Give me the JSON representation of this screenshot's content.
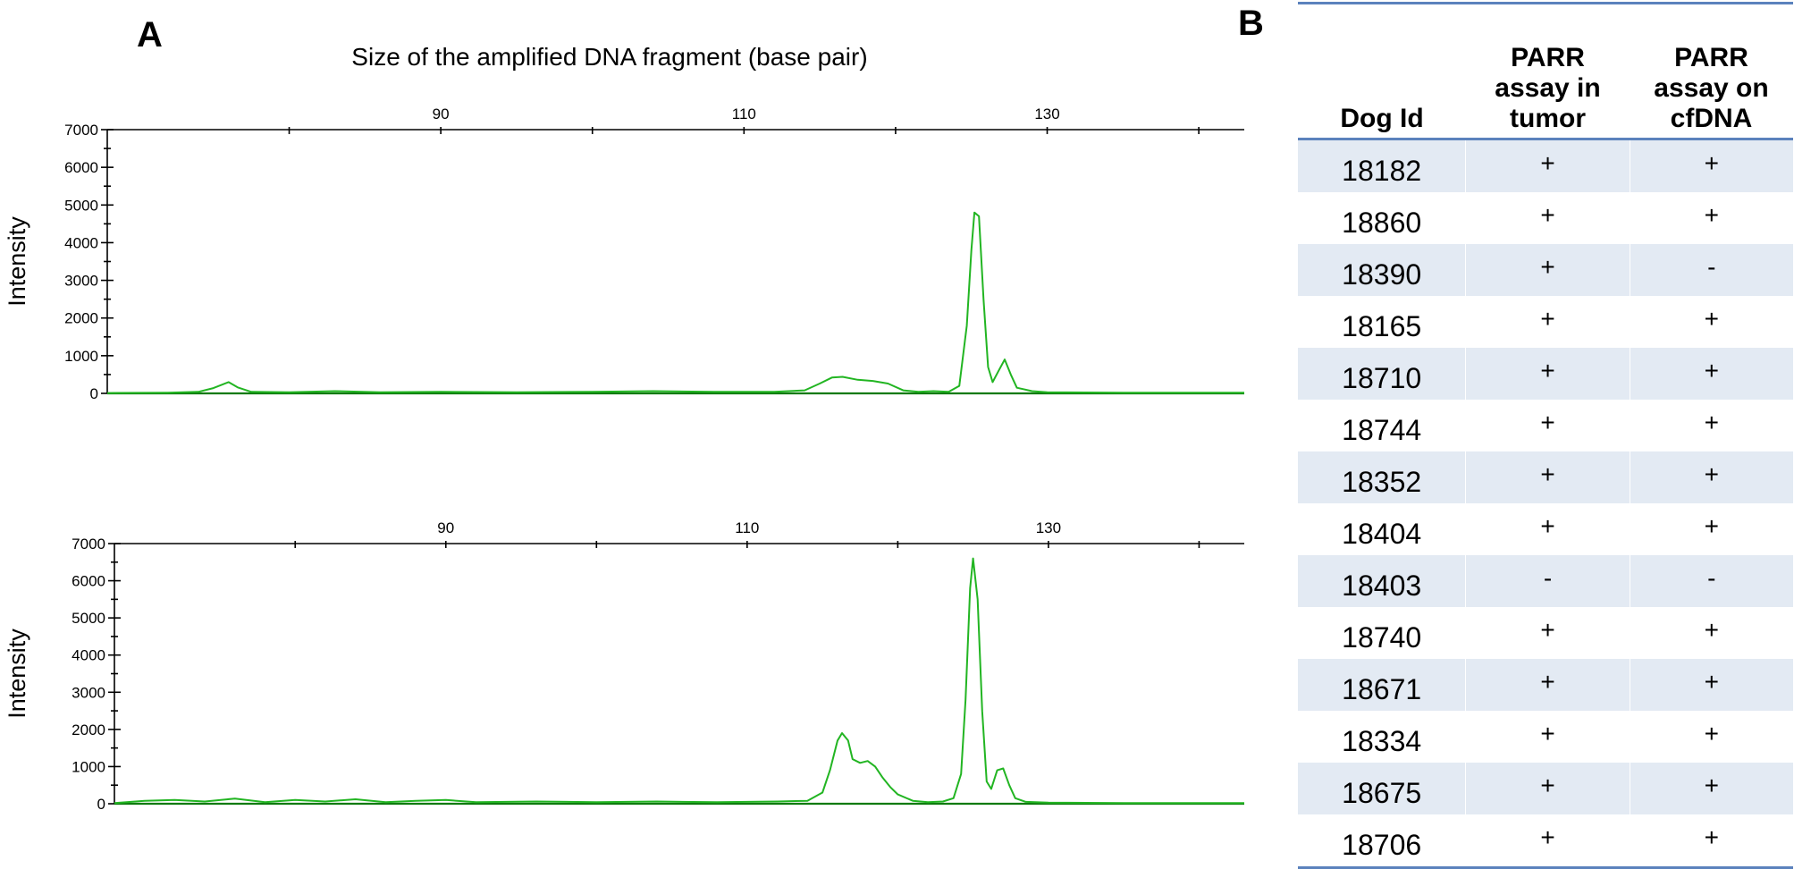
{
  "panel_a": {
    "letter": "A",
    "title": "Size of the amplified DNA fragment (base pair)"
  },
  "chart_data": [
    {
      "type": "line",
      "title": "Size of the amplified DNA fragment (base pair)",
      "xlabel": "",
      "ylabel": "Intensity",
      "xlim": [
        68,
        143
      ],
      "ylim": [
        0,
        7000
      ],
      "x_ticks_labeled": [
        90,
        110,
        130
      ],
      "x_ticks_all": [
        80,
        90,
        100,
        110,
        120,
        130,
        140
      ],
      "y_ticks_labeled": [
        0,
        1000,
        2000,
        3000,
        4000,
        5000,
        6000,
        7000
      ],
      "grid": false,
      "series": [
        {
          "color": "#22b522",
          "points": [
            [
              68,
              10
            ],
            [
              72,
              20
            ],
            [
              74,
              40
            ],
            [
              75,
              140
            ],
            [
              76,
              300
            ],
            [
              76.6,
              160
            ],
            [
              77.5,
              40
            ],
            [
              80,
              30
            ],
            [
              83,
              60
            ],
            [
              86,
              30
            ],
            [
              90,
              40
            ],
            [
              95,
              30
            ],
            [
              100,
              40
            ],
            [
              104,
              60
            ],
            [
              108,
              40
            ],
            [
              112,
              40
            ],
            [
              114,
              80
            ],
            [
              115,
              260
            ],
            [
              115.8,
              420
            ],
            [
              116.5,
              440
            ],
            [
              117.5,
              360
            ],
            [
              118.5,
              330
            ],
            [
              119.5,
              260
            ],
            [
              120.5,
              80
            ],
            [
              121.5,
              40
            ],
            [
              122.5,
              60
            ],
            [
              123.5,
              40
            ],
            [
              124.2,
              200
            ],
            [
              124.7,
              1800
            ],
            [
              125,
              3800
            ],
            [
              125.2,
              4800
            ],
            [
              125.5,
              4700
            ],
            [
              125.8,
              2500
            ],
            [
              126.1,
              700
            ],
            [
              126.4,
              300
            ],
            [
              126.8,
              600
            ],
            [
              127.2,
              900
            ],
            [
              127.6,
              500
            ],
            [
              128,
              150
            ],
            [
              129,
              60
            ],
            [
              130,
              30
            ],
            [
              135,
              20
            ],
            [
              143,
              20
            ]
          ]
        }
      ]
    },
    {
      "type": "line",
      "title": "",
      "xlabel": "",
      "ylabel": "Intensity",
      "xlim": [
        68,
        143
      ],
      "ylim": [
        0,
        7000
      ],
      "x_ticks_labeled": [
        90,
        110,
        130
      ],
      "x_ticks_all": [
        80,
        90,
        100,
        110,
        120,
        130,
        140
      ],
      "y_ticks_labeled": [
        0,
        1000,
        2000,
        3000,
        4000,
        5000,
        6000,
        7000
      ],
      "grid": false,
      "series": [
        {
          "color": "#22b522",
          "points": [
            [
              68,
              20
            ],
            [
              70,
              80
            ],
            [
              72,
              100
            ],
            [
              74,
              60
            ],
            [
              76,
              140
            ],
            [
              78,
              40
            ],
            [
              80,
              100
            ],
            [
              82,
              60
            ],
            [
              84,
              120
            ],
            [
              86,
              40
            ],
            [
              88,
              80
            ],
            [
              90,
              100
            ],
            [
              92,
              40
            ],
            [
              96,
              60
            ],
            [
              100,
              40
            ],
            [
              104,
              60
            ],
            [
              108,
              40
            ],
            [
              112,
              60
            ],
            [
              114,
              80
            ],
            [
              115,
              300
            ],
            [
              115.5,
              900
            ],
            [
              116,
              1700
            ],
            [
              116.3,
              1900
            ],
            [
              116.7,
              1700
            ],
            [
              117,
              1200
            ],
            [
              117.5,
              1100
            ],
            [
              118,
              1150
            ],
            [
              118.5,
              1000
            ],
            [
              119,
              700
            ],
            [
              119.5,
              450
            ],
            [
              120,
              250
            ],
            [
              121,
              80
            ],
            [
              122,
              40
            ],
            [
              123,
              60
            ],
            [
              123.7,
              150
            ],
            [
              124.2,
              800
            ],
            [
              124.5,
              2800
            ],
            [
              124.8,
              5800
            ],
            [
              125,
              6600
            ],
            [
              125.3,
              5500
            ],
            [
              125.6,
              2500
            ],
            [
              125.9,
              600
            ],
            [
              126.2,
              400
            ],
            [
              126.6,
              900
            ],
            [
              127,
              950
            ],
            [
              127.4,
              500
            ],
            [
              127.8,
              150
            ],
            [
              128.5,
              50
            ],
            [
              130,
              30
            ],
            [
              135,
              20
            ],
            [
              143,
              20
            ]
          ]
        }
      ]
    }
  ],
  "panel_b": {
    "letter": "B",
    "headers": {
      "dog_id": "Dog Id",
      "tumor": [
        "PARR",
        "assay in",
        "tumor"
      ],
      "cfdna": [
        "PARR",
        "assay on",
        "cfDNA"
      ]
    },
    "rows": [
      {
        "id": "18182",
        "tumor": "+",
        "cfdna": "+"
      },
      {
        "id": "18860",
        "tumor": "+",
        "cfdna": "+"
      },
      {
        "id": "18390",
        "tumor": "+",
        "cfdna": "-"
      },
      {
        "id": "18165",
        "tumor": "+",
        "cfdna": "+"
      },
      {
        "id": "18710",
        "tumor": "+",
        "cfdna": "+"
      },
      {
        "id": "18744",
        "tumor": "+",
        "cfdna": "+"
      },
      {
        "id": "18352",
        "tumor": "+",
        "cfdna": "+"
      },
      {
        "id": "18404",
        "tumor": "+",
        "cfdna": "+"
      },
      {
        "id": "18403",
        "tumor": "-",
        "cfdna": "-"
      },
      {
        "id": "18740",
        "tumor": "+",
        "cfdna": "+"
      },
      {
        "id": "18671",
        "tumor": "+",
        "cfdna": "+"
      },
      {
        "id": "18334",
        "tumor": "+",
        "cfdna": "+"
      },
      {
        "id": "18675",
        "tumor": "+",
        "cfdna": "+"
      },
      {
        "id": "18706",
        "tumor": "+",
        "cfdna": "+"
      }
    ],
    "colors": {
      "rule": "#5b82bd",
      "shade": "#e3eaf3"
    }
  }
}
